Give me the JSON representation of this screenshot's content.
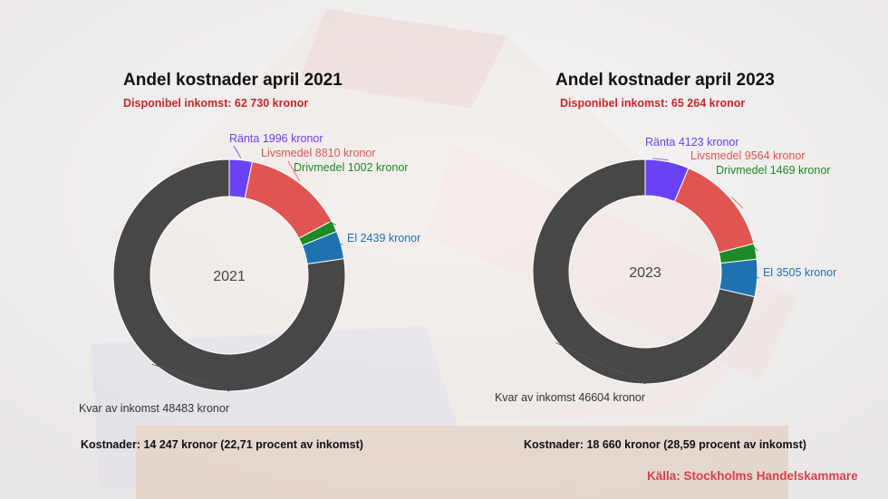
{
  "colors": {
    "ranta": "#6a42f5",
    "livsmedel": "#e05552",
    "drivmedel": "#1c8a25",
    "el": "#1f72b0",
    "kvar": "#474747",
    "subtitle": "#c8262b",
    "source": "#d7404a"
  },
  "source": "Källa: Stockholms Handelskammare",
  "chart_data": [
    {
      "type": "pie",
      "title": "Andel kostnader april 2021",
      "subtitle": "Disponibel inkomst: 62 730 kronor",
      "center_label": "2021",
      "footer": "Kostnader: 14 247 kronor (22,71 procent av inkomst)",
      "slices": [
        {
          "name": "Ränta",
          "value": 1996,
          "label": "Ränta 1996 kronor",
          "color": "#6a42f5"
        },
        {
          "name": "Livsmedel",
          "value": 8810,
          "label": "Livsmedel 8810 kronor",
          "color": "#e05552"
        },
        {
          "name": "Drivmedel",
          "value": 1002,
          "label": "Drivmedel 1002 kronor",
          "color": "#1c8a25"
        },
        {
          "name": "El",
          "value": 2439,
          "label": "El 2439 kronor",
          "color": "#1f72b0"
        },
        {
          "name": "Kvar av inkomst",
          "value": 48483,
          "label": "Kvar av inkomst 48483 kronor",
          "color": "#474747"
        }
      ]
    },
    {
      "type": "pie",
      "title": "Andel kostnader april 2023",
      "subtitle": "Disponibel inkomst: 65 264 kronor",
      "center_label": "2023",
      "footer": "Kostnader: 18 660 kronor (28,59 procent av inkomst)",
      "slices": [
        {
          "name": "Ränta",
          "value": 4123,
          "label": "Ränta 4123 kronor",
          "color": "#6a42f5"
        },
        {
          "name": "Livsmedel",
          "value": 9564,
          "label": "Livsmedel 9564 kronor",
          "color": "#e05552"
        },
        {
          "name": "Drivmedel",
          "value": 1469,
          "label": "Drivmedel 1469 kronor",
          "color": "#1c8a25"
        },
        {
          "name": "El",
          "value": 3505,
          "label": "El 3505 kronor",
          "color": "#1f72b0"
        },
        {
          "name": "Kvar av inkomst",
          "value": 46604,
          "label": "Kvar av inkomst 46604 kronor",
          "color": "#474747"
        }
      ]
    }
  ]
}
